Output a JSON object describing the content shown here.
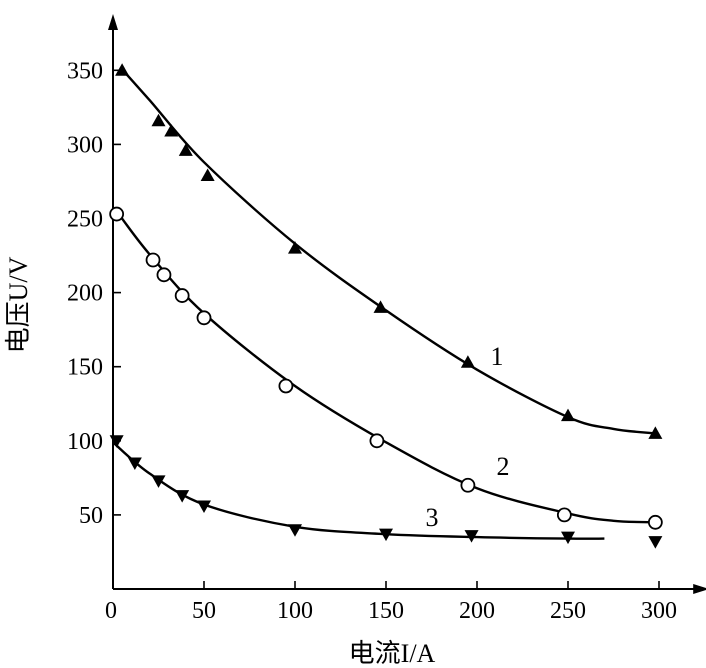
{
  "chart_data": {
    "type": "scatter",
    "title": "",
    "xlabel": "电流I/A",
    "ylabel": "电压U/V",
    "xlim": [
      0,
      310
    ],
    "ylim": [
      0,
      390
    ],
    "xticks": [
      0,
      50,
      100,
      150,
      200,
      250,
      300
    ],
    "yticks": [
      50,
      100,
      150,
      200,
      250,
      300,
      350
    ],
    "grid": false,
    "series": [
      {
        "name": "1",
        "marker": "triangle-up",
        "points": [
          [
            5,
            350
          ],
          [
            25,
            316
          ],
          [
            32,
            309
          ],
          [
            40,
            296
          ],
          [
            52,
            279
          ],
          [
            100,
            230
          ],
          [
            147,
            190
          ],
          [
            195,
            153
          ],
          [
            250,
            117
          ],
          [
            298,
            105
          ]
        ],
        "curve": [
          [
            4,
            352
          ],
          [
            20,
            330
          ],
          [
            50,
            288
          ],
          [
            100,
            233
          ],
          [
            150,
            188
          ],
          [
            200,
            148
          ],
          [
            250,
            116
          ],
          [
            275,
            108
          ],
          [
            298,
            105
          ]
        ]
      },
      {
        "name": "2",
        "marker": "circle",
        "points": [
          [
            2,
            253
          ],
          [
            22,
            222
          ],
          [
            28,
            212
          ],
          [
            38,
            198
          ],
          [
            50,
            183
          ],
          [
            95,
            137
          ],
          [
            145,
            100
          ],
          [
            195,
            70
          ],
          [
            248,
            50
          ],
          [
            298,
            45
          ]
        ],
        "curve": [
          [
            2,
            255
          ],
          [
            20,
            226
          ],
          [
            50,
            186
          ],
          [
            100,
            137
          ],
          [
            150,
            99
          ],
          [
            200,
            68
          ],
          [
            250,
            51
          ],
          [
            275,
            46
          ],
          [
            298,
            45
          ]
        ]
      },
      {
        "name": "3",
        "marker": "triangle-down",
        "points": [
          [
            2,
            100
          ],
          [
            12,
            85
          ],
          [
            25,
            73
          ],
          [
            38,
            63
          ],
          [
            50,
            56
          ],
          [
            100,
            40
          ],
          [
            150,
            37
          ],
          [
            197,
            36
          ],
          [
            250,
            35
          ],
          [
            298,
            32
          ]
        ],
        "curve": [
          [
            0,
            99
          ],
          [
            20,
            78
          ],
          [
            50,
            57
          ],
          [
            100,
            42
          ],
          [
            150,
            37
          ],
          [
            200,
            35
          ],
          [
            250,
            34
          ],
          [
            270,
            34
          ]
        ]
      }
    ]
  }
}
